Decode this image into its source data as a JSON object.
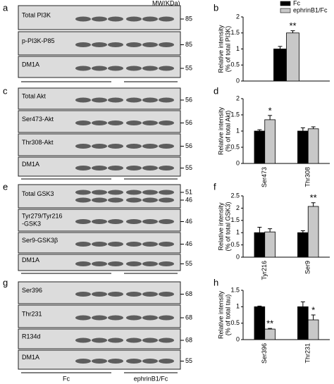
{
  "figure": {
    "mw_header": "MW(KDa)",
    "group_labels": [
      "Fc",
      "ephrinB1/Fc"
    ],
    "blots": [
      {
        "label": "a",
        "rows": [
          {
            "name": [
              "Total PI3K"
            ],
            "mw": [
              85
            ]
          },
          {
            "name": [
              "p-PI3K-P85"
            ],
            "mw": [
              85
            ]
          },
          {
            "name": [
              "DM1A"
            ],
            "mw": [
              55
            ]
          }
        ]
      },
      {
        "label": "c",
        "rows": [
          {
            "name": [
              "Total Akt"
            ],
            "mw": [
              56
            ]
          },
          {
            "name": [
              "Ser473-Akt"
            ],
            "mw": [
              56
            ]
          },
          {
            "name": [
              "Thr308-Akt"
            ],
            "mw": [
              56
            ]
          },
          {
            "name": [
              "DM1A"
            ],
            "mw": [
              55
            ]
          }
        ]
      },
      {
        "label": "e",
        "rows": [
          {
            "name": [
              "Total GSK3"
            ],
            "mw": [
              51,
              46
            ]
          },
          {
            "name": [
              "Tyr279/Tyr216",
              "-GSK3"
            ],
            "mw": [
              46
            ]
          },
          {
            "name": [
              "Ser9-GSK3β"
            ],
            "mw": [
              46
            ]
          },
          {
            "name": [
              "DM1A"
            ],
            "mw": [
              55
            ]
          }
        ]
      },
      {
        "label": "g",
        "rows": [
          {
            "name": [
              "Ser396"
            ],
            "mw": [
              68
            ]
          },
          {
            "name": [
              "Thr231"
            ],
            "mw": [
              68
            ]
          },
          {
            "name": [
              "R134d"
            ],
            "mw": [
              68
            ]
          },
          {
            "name": [
              "DM1A"
            ],
            "mw": [
              55
            ]
          }
        ]
      }
    ]
  },
  "chart_data": [
    {
      "type": "bar",
      "label": "b",
      "ylabel": [
        "Relative intensity",
        "(% of total PI3K)"
      ],
      "categories": [
        null
      ],
      "series": [
        {
          "name": "Fc",
          "color": "#000000",
          "values": [
            1
          ],
          "errors": [
            0.08
          ]
        },
        {
          "name": "ephrinB1/Fc",
          "color": "#c8c8c8",
          "values": [
            1.5
          ],
          "errors": [
            0.07
          ],
          "significance": [
            "**"
          ]
        }
      ],
      "ylim": [
        0,
        2
      ],
      "yticks": [
        0,
        0.5,
        1,
        1.5,
        2
      ]
    },
    {
      "type": "bar",
      "label": "d",
      "ylabel": [
        "Relative intensity",
        "(% of total Akt)"
      ],
      "categories": [
        "Ser473",
        "Thr308"
      ],
      "series": [
        {
          "color": "#000000",
          "values": [
            1,
            1
          ],
          "errors": [
            0.04,
            0.1
          ]
        },
        {
          "color": "#c8c8c8",
          "values": [
            1.35,
            1.07
          ],
          "errors": [
            0.13,
            0.06
          ],
          "significance": [
            "*",
            null
          ]
        }
      ],
      "ylim": [
        0,
        2
      ],
      "yticks": [
        0,
        0.5,
        1,
        1.5,
        2
      ]
    },
    {
      "type": "bar",
      "label": "f",
      "ylabel": [
        "Relative intensity",
        "(% of total GSK3)"
      ],
      "categories": [
        "Tyr216",
        "Ser9"
      ],
      "series": [
        {
          "color": "#000000",
          "values": [
            1,
            1
          ],
          "errors": [
            0.22,
            0.08
          ]
        },
        {
          "color": "#c8c8c8",
          "values": [
            1.03,
            2.07
          ],
          "errors": [
            0.13,
            0.15
          ],
          "significance": [
            null,
            "**"
          ]
        }
      ],
      "ylim": [
        0,
        2.5
      ],
      "yticks": [
        0,
        0.5,
        1,
        1.5,
        2,
        2.5
      ]
    },
    {
      "type": "bar",
      "label": "h",
      "ylabel": [
        "Relative intensity",
        "(% of total tau)"
      ],
      "categories": [
        "Ser396",
        "Thr231"
      ],
      "series": [
        {
          "color": "#000000",
          "values": [
            1,
            1
          ],
          "errors": [
            0.02,
            0.15
          ]
        },
        {
          "color": "#c8c8c8",
          "values": [
            0.32,
            0.6
          ],
          "errors": [
            0.02,
            0.15
          ],
          "significance": [
            "**",
            "*"
          ]
        }
      ],
      "ylim": [
        0,
        1.5
      ],
      "yticks": [
        0,
        0.5,
        1,
        1.5
      ]
    }
  ]
}
